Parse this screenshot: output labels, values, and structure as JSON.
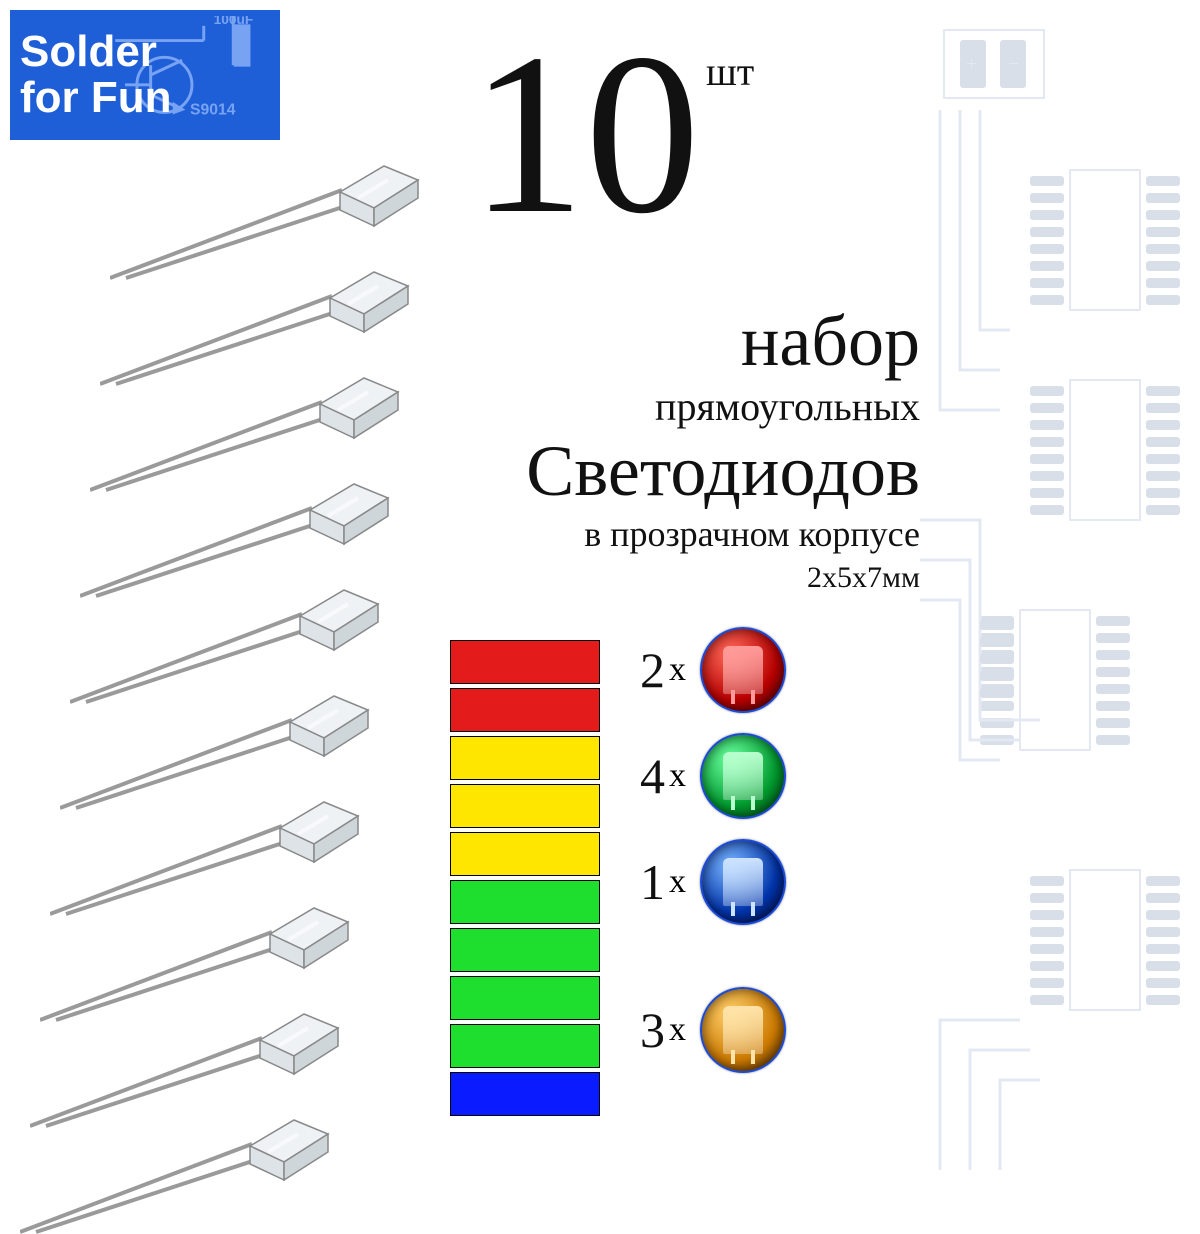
{
  "logo": {
    "line1": "Solder",
    "line2": "for Fun",
    "cap_label": "100uF",
    "transistor_label": "S9014",
    "brand_color": "#1e5fd8",
    "text_color": "#ffffff"
  },
  "quantity": {
    "value": "10",
    "unit": "шт",
    "fontsize_num": 230,
    "fontsize_unit": 40
  },
  "title": {
    "line1": "набор",
    "line2": "прямоугольных",
    "line3": "Светодиодов",
    "line4": "в прозрачном корпусе",
    "size": "2х5х7мм"
  },
  "led_count": 10,
  "led_style": {
    "leg_color": "#9a9a9a",
    "head_fill": "#eef2f4",
    "head_stroke": "#888888"
  },
  "bars": [
    {
      "color": "#e31b1b"
    },
    {
      "color": "#e31b1b"
    },
    {
      "color": "#ffe600"
    },
    {
      "color": "#ffe600"
    },
    {
      "color": "#ffe600"
    },
    {
      "color": "#1ede2e"
    },
    {
      "color": "#1ede2e"
    },
    {
      "color": "#1ede2e"
    },
    {
      "color": "#1ede2e"
    },
    {
      "color": "#0a1cff"
    }
  ],
  "counts": [
    {
      "n": "2",
      "x": "x",
      "circle_bg": "radial-gradient(circle at 35% 30%, #ff6b5a, #b80000 60%, #3a0000)",
      "led_color": "#ff9a9a",
      "ring": "#1b4bd6"
    },
    {
      "n": "4",
      "x": "x",
      "circle_bg": "radial-gradient(circle at 35% 30%, #6bffa0, #009a2e 60%, #003a10)",
      "led_color": "#b8ffcd",
      "ring": "#1b4bd6"
    },
    {
      "n": "1",
      "x": "x",
      "circle_bg": "radial-gradient(circle at 35% 30%, #7ab6ff, #0033aa 60%, #000833)",
      "led_color": "#cde3ff",
      "ring": "#1b4bd6"
    },
    {
      "n": "3",
      "x": "x",
      "circle_bg": "radial-gradient(circle at 35% 30%, #ffcf6b, #cc7a00 60%, #3a2000)",
      "led_color": "#ffe3a8",
      "ring": "#1b4bd6",
      "gap": true
    }
  ],
  "circuit": {
    "line_color": "#c8d3e6",
    "pad_color": "#b5c0d4"
  }
}
